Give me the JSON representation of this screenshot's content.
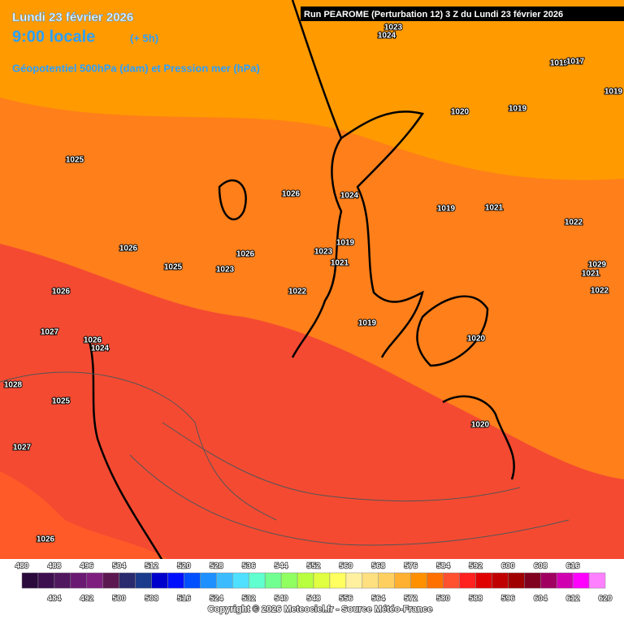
{
  "header": {
    "date": "Lundi 23 février 2026",
    "time": "9:00 locale",
    "offset": "(+ 5h)",
    "field": "Géopotentiel 500hPa (dam) et Pression mer (hPa)",
    "run": "Run PEAROME (Perturbation 12) 3 Z du Lundi 23 février 2026"
  },
  "pressure_labels": [
    1023,
    1024,
    1019,
    1017,
    1019,
    1020,
    1019,
    1025,
    1026,
    1024,
    1019,
    1021,
    1022,
    1026,
    1025,
    1023,
    1026,
    1023,
    1019,
    1021,
    1029,
    1021,
    1022,
    1026,
    1022,
    1019,
    1020,
    1027,
    1026,
    1024,
    1028,
    1025,
    1020,
    1027,
    1026
  ],
  "scale": {
    "labels": [
      480,
      484,
      488,
      492,
      496,
      500,
      504,
      508,
      512,
      516,
      520,
      524,
      528,
      532,
      536,
      540,
      544,
      548,
      552,
      556,
      560,
      564,
      568,
      572,
      576,
      580,
      584,
      588,
      592,
      596,
      600,
      604,
      608,
      612,
      616,
      620
    ],
    "colors": [
      "#2b0a3d",
      "#3d0f4f",
      "#50185f",
      "#6b1a73",
      "#7e1f80",
      "#5c1850",
      "#2a2a6e",
      "#1a3a8c",
      "#0000cc",
      "#0010ff",
      "#0050ff",
      "#1e90ff",
      "#3cbcff",
      "#50e0ff",
      "#60ffd0",
      "#70ff90",
      "#90ff60",
      "#b8ff40",
      "#e0ff40",
      "#ffff60",
      "#fff0a0",
      "#ffe080",
      "#ffd060",
      "#ffb030",
      "#ff9000",
      "#ff7000",
      "#ff5030",
      "#ff2020",
      "#e00000",
      "#c00000",
      "#a00000",
      "#800020",
      "#a00060",
      "#d000b0",
      "#ff00ff",
      "#ff80ff"
    ]
  },
  "copyright": "Copyright © 2026 Meteociel.fr - Source Météo-France"
}
